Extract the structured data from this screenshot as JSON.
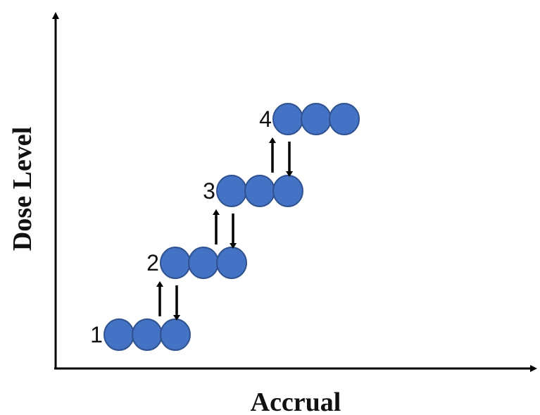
{
  "diagram": {
    "x_axis_label": "Accrual",
    "y_axis_label": "Dose Level",
    "patients_per_cohort": 3,
    "colors": {
      "patient_fill": "#4472c4",
      "patient_stroke": "#2f528f",
      "axis": "#000000",
      "arrow": "#000000"
    },
    "levels": [
      {
        "label": "1"
      },
      {
        "label": "2"
      },
      {
        "label": "3"
      },
      {
        "label": "4"
      }
    ],
    "transitions": [
      {
        "between": [
          "1",
          "2"
        ],
        "arrows": [
          "up-arrow",
          "down-arrow"
        ]
      },
      {
        "between": [
          "2",
          "3"
        ],
        "arrows": [
          "up-arrow",
          "down-arrow"
        ]
      },
      {
        "between": [
          "3",
          "4"
        ],
        "arrows": [
          "up-arrow",
          "down-arrow"
        ]
      }
    ]
  }
}
